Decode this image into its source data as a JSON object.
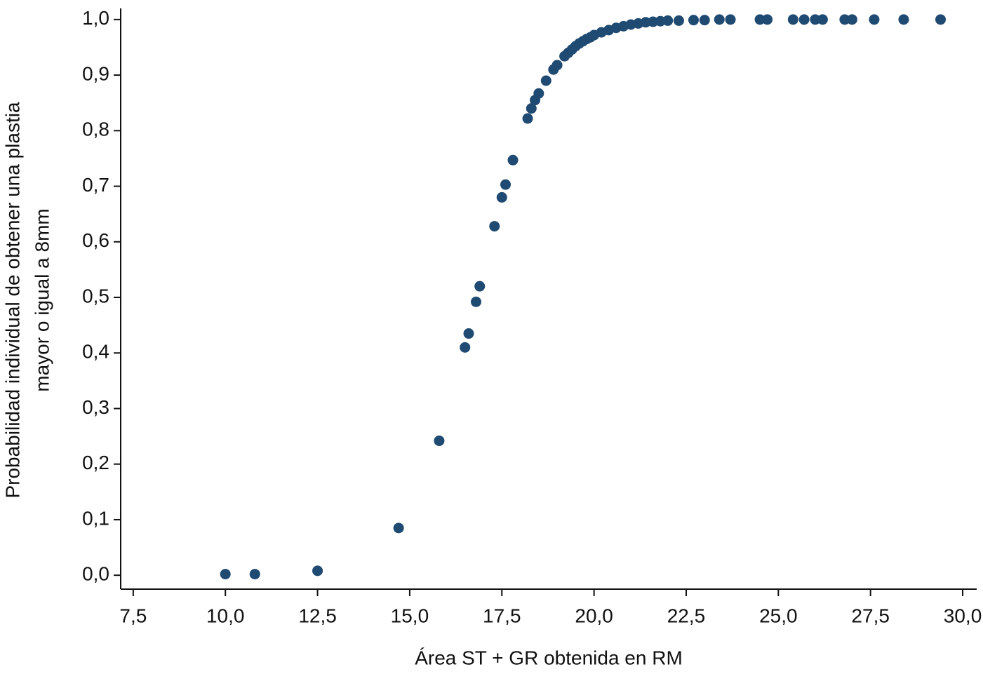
{
  "chart_data": {
    "type": "scatter",
    "xlabel": "Área ST + GR obtenida en RM",
    "ylabel": [
      "Probabilidad individual de obtener una plastia",
      "mayor o igual a 8mm"
    ],
    "color": "#1f4a72",
    "x": [
      10.0,
      10.8,
      12.5,
      14.7,
      15.8,
      16.5,
      16.6,
      16.8,
      16.9,
      17.3,
      17.5,
      17.6,
      17.8,
      18.2,
      18.3,
      18.4,
      18.5,
      18.7,
      18.9,
      19.0,
      19.2,
      19.3,
      19.4,
      19.5,
      19.6,
      19.7,
      19.8,
      19.9,
      20.0,
      20.2,
      20.4,
      20.6,
      20.8,
      21.0,
      21.2,
      21.4,
      21.6,
      21.8,
      22.0,
      22.3,
      22.7,
      23.0,
      23.4,
      23.7,
      24.5,
      24.7,
      25.4,
      25.7,
      26.0,
      26.2,
      26.8,
      27.0,
      27.6,
      28.4,
      29.4
    ],
    "values": [
      0.002,
      0.002,
      0.008,
      0.085,
      0.242,
      0.41,
      0.435,
      0.492,
      0.52,
      0.628,
      0.68,
      0.703,
      0.747,
      0.822,
      0.84,
      0.855,
      0.867,
      0.89,
      0.91,
      0.918,
      0.934,
      0.94,
      0.946,
      0.952,
      0.957,
      0.961,
      0.965,
      0.968,
      0.972,
      0.977,
      0.981,
      0.985,
      0.988,
      0.991,
      0.993,
      0.995,
      0.996,
      0.997,
      0.998,
      0.998,
      0.999,
      0.999,
      1.0,
      1.0,
      1.0,
      1.0,
      1.0,
      1.0,
      1.0,
      1.0,
      1.0,
      1.0,
      1.0,
      1.0,
      1.0
    ],
    "xlim": [
      7.16,
      30.38
    ],
    "ylim": [
      -0.025,
      1.02
    ],
    "xticks": [
      {
        "value": 7.5,
        "label": "7,5"
      },
      {
        "value": 10,
        "label": "10,0"
      },
      {
        "value": 12.5,
        "label": "12,5"
      },
      {
        "value": 15,
        "label": "15,0"
      },
      {
        "value": 17.5,
        "label": "17,5"
      },
      {
        "value": 20,
        "label": "20,0"
      },
      {
        "value": 22.5,
        "label": "22,5"
      },
      {
        "value": 25,
        "label": "25,0"
      },
      {
        "value": 27.5,
        "label": "27,5"
      },
      {
        "value": 30,
        "label": "30,0"
      }
    ],
    "yticks": [
      {
        "value": 0,
        "label": "0,0"
      },
      {
        "value": 0.1,
        "label": "0,1"
      },
      {
        "value": 0.2,
        "label": "0,2"
      },
      {
        "value": 0.3,
        "label": "0,3"
      },
      {
        "value": 0.4,
        "label": "0,4"
      },
      {
        "value": 0.5,
        "label": "0,5"
      },
      {
        "value": 0.6,
        "label": "0,6"
      },
      {
        "value": 0.7,
        "label": "0,7"
      },
      {
        "value": 0.8,
        "label": "0,8"
      },
      {
        "value": 0.9,
        "label": "0,9"
      },
      {
        "value": 1,
        "label": "1,0"
      }
    ]
  }
}
